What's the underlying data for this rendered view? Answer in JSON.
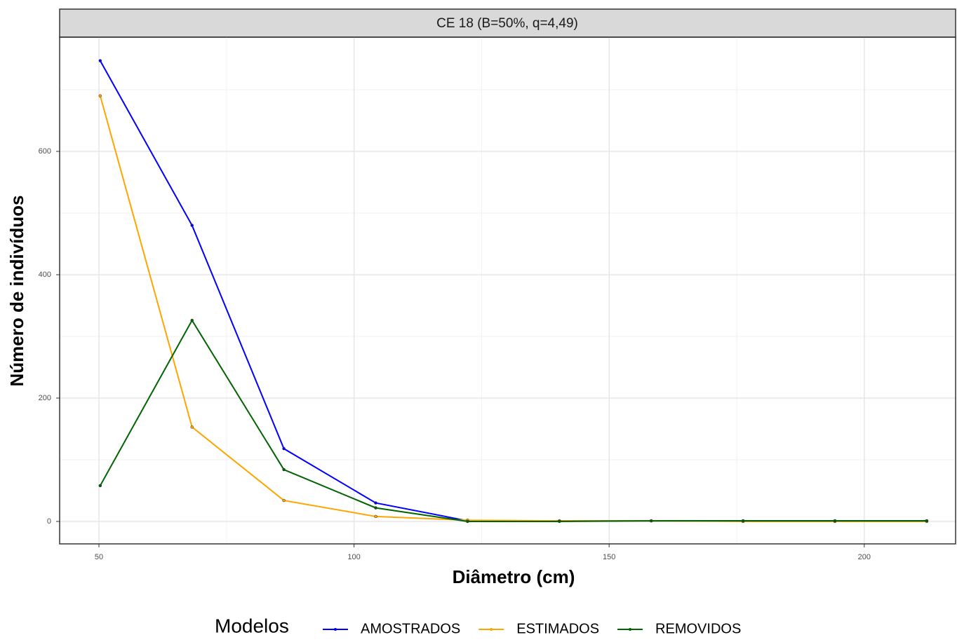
{
  "chart_data": {
    "type": "line",
    "strip_title": "CE 18 (B=50%, q=4,49)",
    "x_label": "Diâmetro (cm)",
    "y_label": "Número de indivíduos",
    "legend_title": "Modelos",
    "x": [
      50.25,
      68.25,
      86.25,
      104.25,
      122.25,
      140.25,
      158.25,
      176.25,
      194.25,
      212.25
    ],
    "series": [
      {
        "name": "AMOSTRADOS",
        "color": "#0000ff",
        "values": [
          747,
          480,
          118,
          30,
          1,
          1,
          1,
          1,
          1,
          1
        ]
      },
      {
        "name": "ESTIMADOS",
        "color": "#ffa500",
        "values": [
          690,
          153,
          34,
          8,
          2,
          1,
          1,
          0,
          0,
          0
        ]
      },
      {
        "name": "REMOVIDOS",
        "color": "#006400",
        "values": [
          58,
          326,
          84,
          22,
          0,
          0,
          1,
          1,
          1,
          1
        ]
      }
    ],
    "xlim": [
      42.3,
      217.9
    ],
    "xticks": [
      50,
      100,
      150,
      200
    ],
    "ylim": [
      -36.4,
      785.2
    ],
    "yticks": [
      0,
      200,
      400,
      600
    ],
    "grid": true,
    "legend": "bottom"
  }
}
